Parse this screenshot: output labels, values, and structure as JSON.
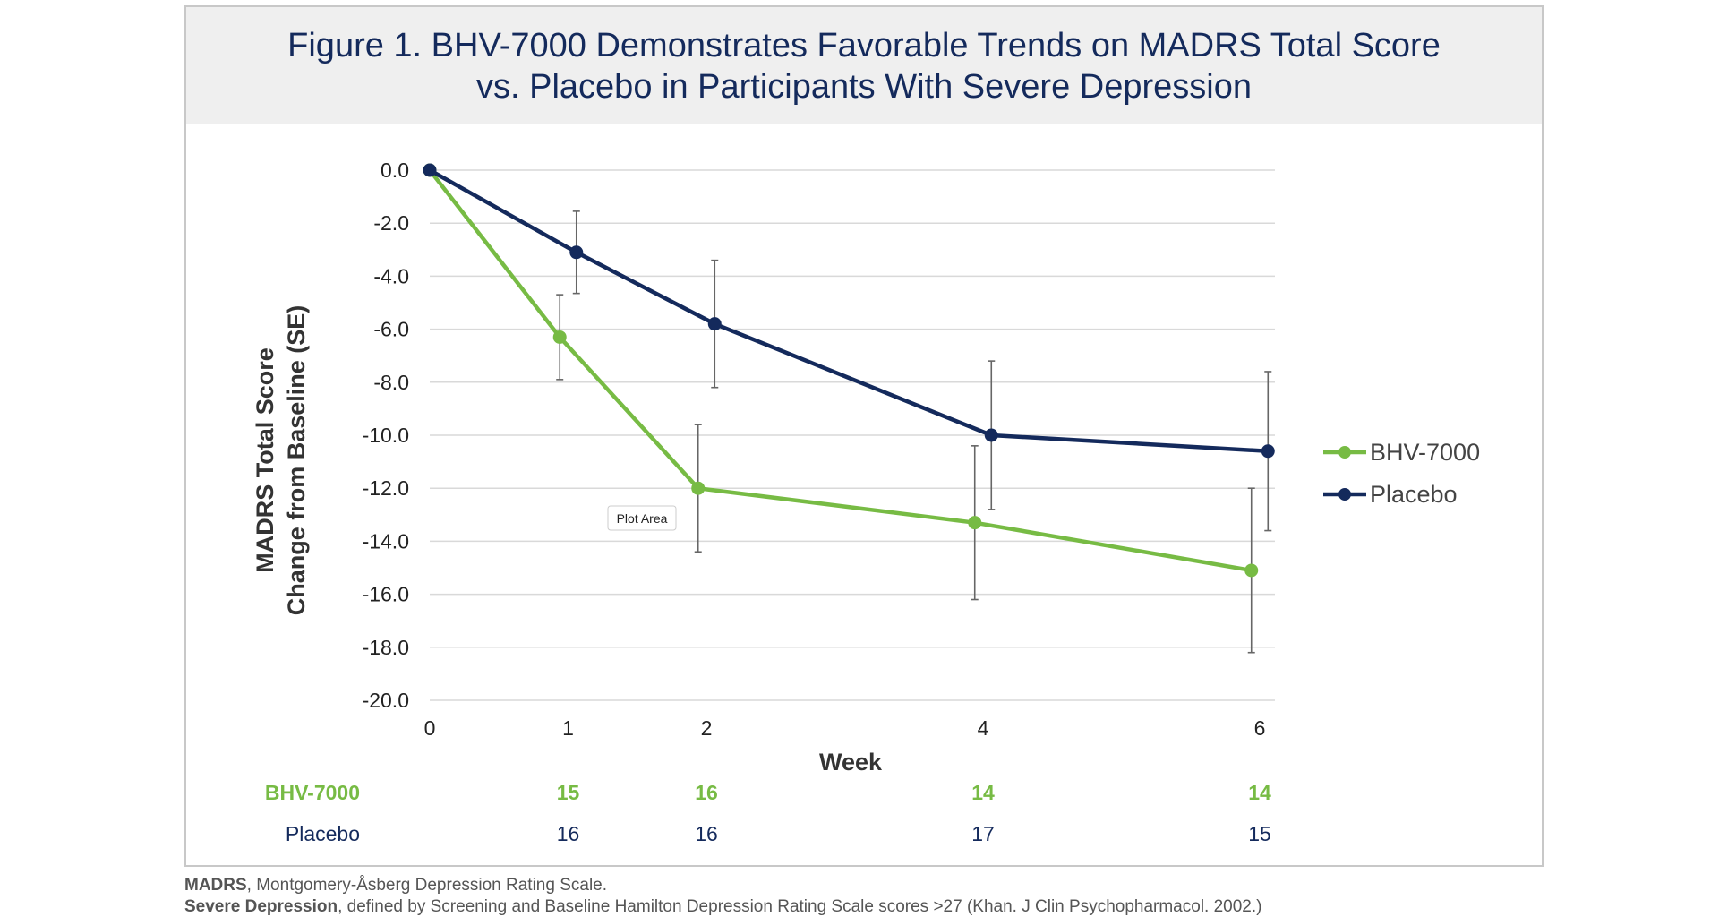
{
  "chart_data": {
    "type": "line",
    "title": [
      "Figure 1. BHV-7000 Demonstrates Favorable Trends on MADRS Total Score",
      "vs. Placebo in Participants With Severe Depression"
    ],
    "xlabel": "Week",
    "ylabel": [
      "MADRS Total Score",
      "Change from Baseline (SE)"
    ],
    "x": [
      0,
      1,
      2,
      4,
      6
    ],
    "xlim": [
      0,
      6
    ],
    "ylim": [
      -20,
      0
    ],
    "yticks": [
      "0.0",
      "-2.0",
      "-4.0",
      "-6.0",
      "-8.0",
      "-10.0",
      "-12.0",
      "-14.0",
      "-16.0",
      "-18.0",
      "-20.0"
    ],
    "xticks": [
      "0",
      "1",
      "2",
      "4",
      "6"
    ],
    "grid": true,
    "legend_position": "right",
    "series": [
      {
        "name": "BHV-7000",
        "color": "#77bb44",
        "values": [
          0,
          -6.3,
          -12.0,
          -13.3,
          -15.1
        ],
        "se": [
          0,
          1.6,
          2.4,
          2.9,
          3.1
        ]
      },
      {
        "name": "Placebo",
        "color": "#142a5c",
        "values": [
          0,
          -3.1,
          -5.8,
          -10.0,
          -10.6
        ],
        "se": [
          0,
          1.55,
          2.4,
          2.8,
          3.0
        ]
      }
    ],
    "n_table": [
      {
        "label": "BHV-7000",
        "values": [
          "15",
          "16",
          "14",
          "14"
        ]
      },
      {
        "label": "Placebo",
        "values": [
          "16",
          "16",
          "17",
          "15"
        ]
      }
    ],
    "tooltip": "Plot Area"
  },
  "footnotes": [
    {
      "bold": "MADRS",
      "text": ", Montgomery-Åsberg Depression Rating Scale."
    },
    {
      "bold": "Severe Depression",
      "text": ", defined by Screening and Baseline Hamilton Depression Rating Scale scores >27 (Khan. J Clin Psychopharmacol. 2002.)"
    }
  ]
}
